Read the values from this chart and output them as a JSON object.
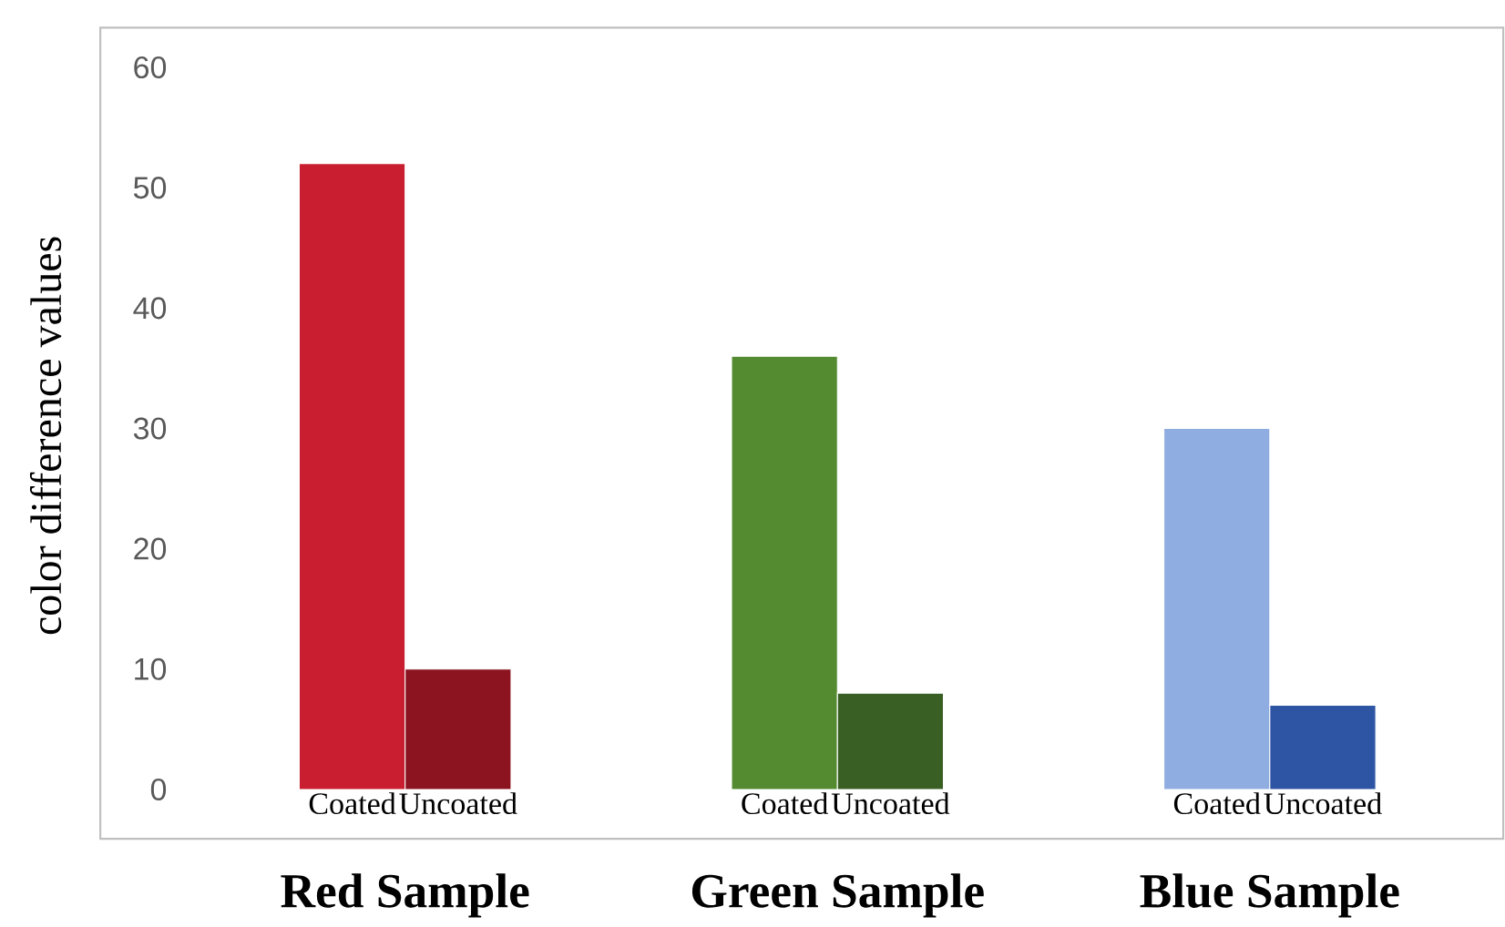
{
  "chart_data": {
    "type": "bar",
    "ylabel": "color difference values",
    "categories": [
      "Red Sample",
      "Green Sample",
      "Blue Sample"
    ],
    "ylim": [
      0,
      60
    ],
    "yticks": [
      0,
      10,
      20,
      30,
      40,
      50,
      60
    ],
    "series": [
      {
        "name": "Coated",
        "colors": [
          "#c81e2f",
          "#548b31",
          "#8fade0"
        ],
        "values": [
          52,
          36,
          30
        ]
      },
      {
        "name": "Uncoated",
        "colors": [
          "#8b1420",
          "#3a5f24",
          "#2e55a3"
        ],
        "values": [
          10,
          8,
          7
        ]
      }
    ]
  }
}
